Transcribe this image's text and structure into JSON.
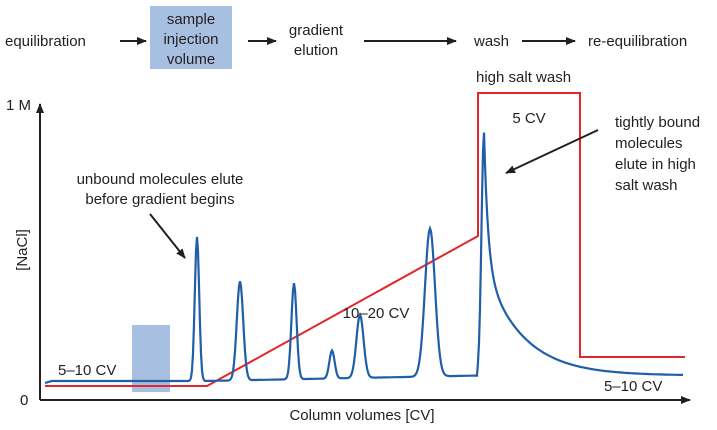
{
  "flow": {
    "steps": [
      "equilibration",
      "sample",
      "injection",
      "volume",
      "gradient",
      "elution",
      "wash",
      "re-equilibration"
    ]
  },
  "axes": {
    "y_top_label": "1 M",
    "y_zero_label": "0",
    "y_label": "[NaCl]",
    "x_label": "Column volumes [CV]"
  },
  "annotations": {
    "high_salt_wash": "high salt wash",
    "five_cv": "5 CV",
    "tightly_bound": [
      "tightly bound",
      "molecules",
      "elute in high",
      "salt wash"
    ],
    "unbound": [
      "unbound molecules elute",
      "before gradient begins"
    ],
    "gradient_cv": "10–20 CV",
    "equil_cv": "5–10 CV",
    "reequil_cv": "5–10 CV"
  },
  "colors": {
    "salt_line": "#e3262b",
    "absorbance_trace": "#1f5fa8",
    "injection_box": "#a7bfe0",
    "text": "#231f20"
  }
}
